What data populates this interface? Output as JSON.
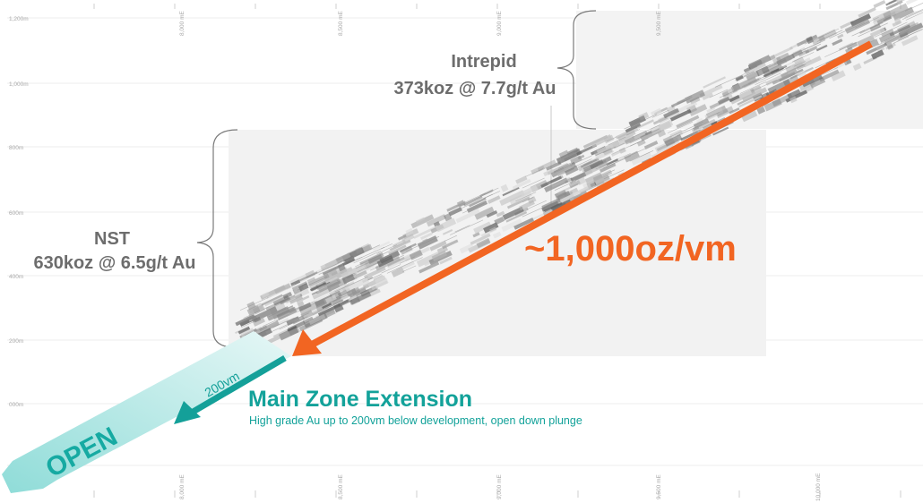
{
  "intrepid": {
    "name": "Intrepid",
    "resource": "373koz @ 7.7g/t Au"
  },
  "nst": {
    "name": "NST",
    "resource": "630koz @ 6.5g/t Au"
  },
  "grade_rate": "~1,000oz/vm",
  "depth_arrow_label": "200vm",
  "open_label": "OPEN",
  "main_zone_extension": {
    "title": "Main Zone Extension",
    "description": "High grade Au up to 200vm below development, open down plunge"
  },
  "rl_labels": [
    "1,200m",
    "1,000m",
    "800m",
    "600m",
    "400m",
    "200m",
    "000m"
  ],
  "easting_labels_top": [
    "8,000 mE",
    "8,500 mE",
    "9,000 mE",
    "9,500 mE"
  ],
  "easting_labels_bottom": [
    "8,000 mE",
    "8,500 mE",
    "9,000 mE",
    "9,500 mE",
    "10,000 mE"
  ],
  "colors": {
    "rate_arrow": "#f26522",
    "extension": "#13a29a",
    "open_arrow": "#6fd3d0",
    "zone_box": "#f2f2f2",
    "text_grey": "#6d6d6d"
  }
}
